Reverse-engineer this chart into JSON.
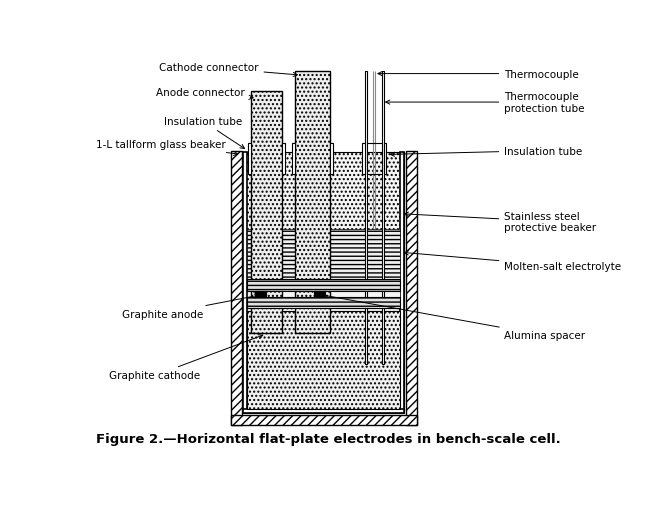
{
  "title": "Figure 2.—Horizontal flat-plate electrodes in bench-scale cell.",
  "background_color": "#ffffff",
  "figure_width": 6.55,
  "figure_height": 5.06,
  "labels": {
    "cathode_connector": "Cathode connector",
    "anode_connector": "Anode connector",
    "insulation_tube_left": "Insulation tube",
    "glass_beaker": "1-L tallform glass beaker",
    "thermocouple": "Thermocouple",
    "thermocouple_protection": "Thermocouple\nprotection tube",
    "insulation_tube_right": "Insulation tube",
    "stainless_steel": "Stainless steel\nprotective beaker",
    "molten_salt": "Molten-salt electrolyte",
    "graphite_anode": "Graphite anode",
    "alumina_spacer": "Alumina spacer",
    "graphite_cathode": "Graphite cathode"
  }
}
